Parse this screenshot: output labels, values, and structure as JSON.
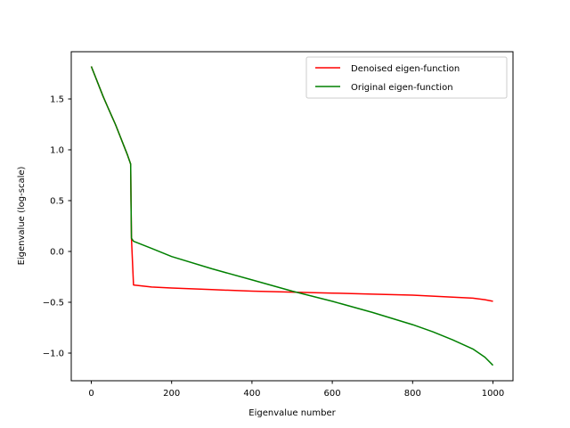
{
  "chart_data": {
    "type": "line",
    "title": "",
    "xlabel": "Eigenvalue number",
    "ylabel": "Eigenvalue (log-scale)",
    "xlim": [
      -50,
      1050
    ],
    "ylim": [
      -1.25,
      1.93
    ],
    "xticks": [
      "0",
      "200",
      "400",
      "600",
      "800",
      "1000"
    ],
    "yticks": [
      "−1.0",
      "−0.5",
      "0.0",
      "0.5",
      "1.0",
      "1.5"
    ],
    "grid": false,
    "legend_position": "upper right",
    "series": [
      {
        "name": "Denoised eigen-function",
        "color": "#ff0000",
        "x": [
          0,
          10,
          20,
          30,
          40,
          50,
          60,
          70,
          80,
          90,
          98,
          99,
          100,
          105,
          150,
          200,
          300,
          400,
          500,
          600,
          700,
          800,
          900,
          950,
          980,
          1000
        ],
        "y": [
          1.82,
          1.72,
          1.62,
          1.52,
          1.43,
          1.34,
          1.25,
          1.15,
          1.05,
          0.95,
          0.86,
          0.5,
          0.13,
          -0.33,
          -0.35,
          -0.36,
          -0.375,
          -0.39,
          -0.4,
          -0.41,
          -0.42,
          -0.43,
          -0.45,
          -0.46,
          -0.475,
          -0.49
        ]
      },
      {
        "name": "Original eigen-function",
        "color": "#008000",
        "x": [
          0,
          10,
          20,
          30,
          40,
          50,
          60,
          70,
          80,
          90,
          98,
          99,
          100,
          105,
          150,
          200,
          300,
          400,
          500,
          600,
          700,
          800,
          850,
          900,
          950,
          980,
          1000
        ],
        "y": [
          1.82,
          1.72,
          1.62,
          1.52,
          1.43,
          1.34,
          1.25,
          1.15,
          1.05,
          0.95,
          0.86,
          0.5,
          0.13,
          0.1,
          0.03,
          -0.05,
          -0.17,
          -0.28,
          -0.39,
          -0.49,
          -0.6,
          -0.72,
          -0.79,
          -0.87,
          -0.96,
          -1.04,
          -1.12
        ]
      }
    ]
  }
}
